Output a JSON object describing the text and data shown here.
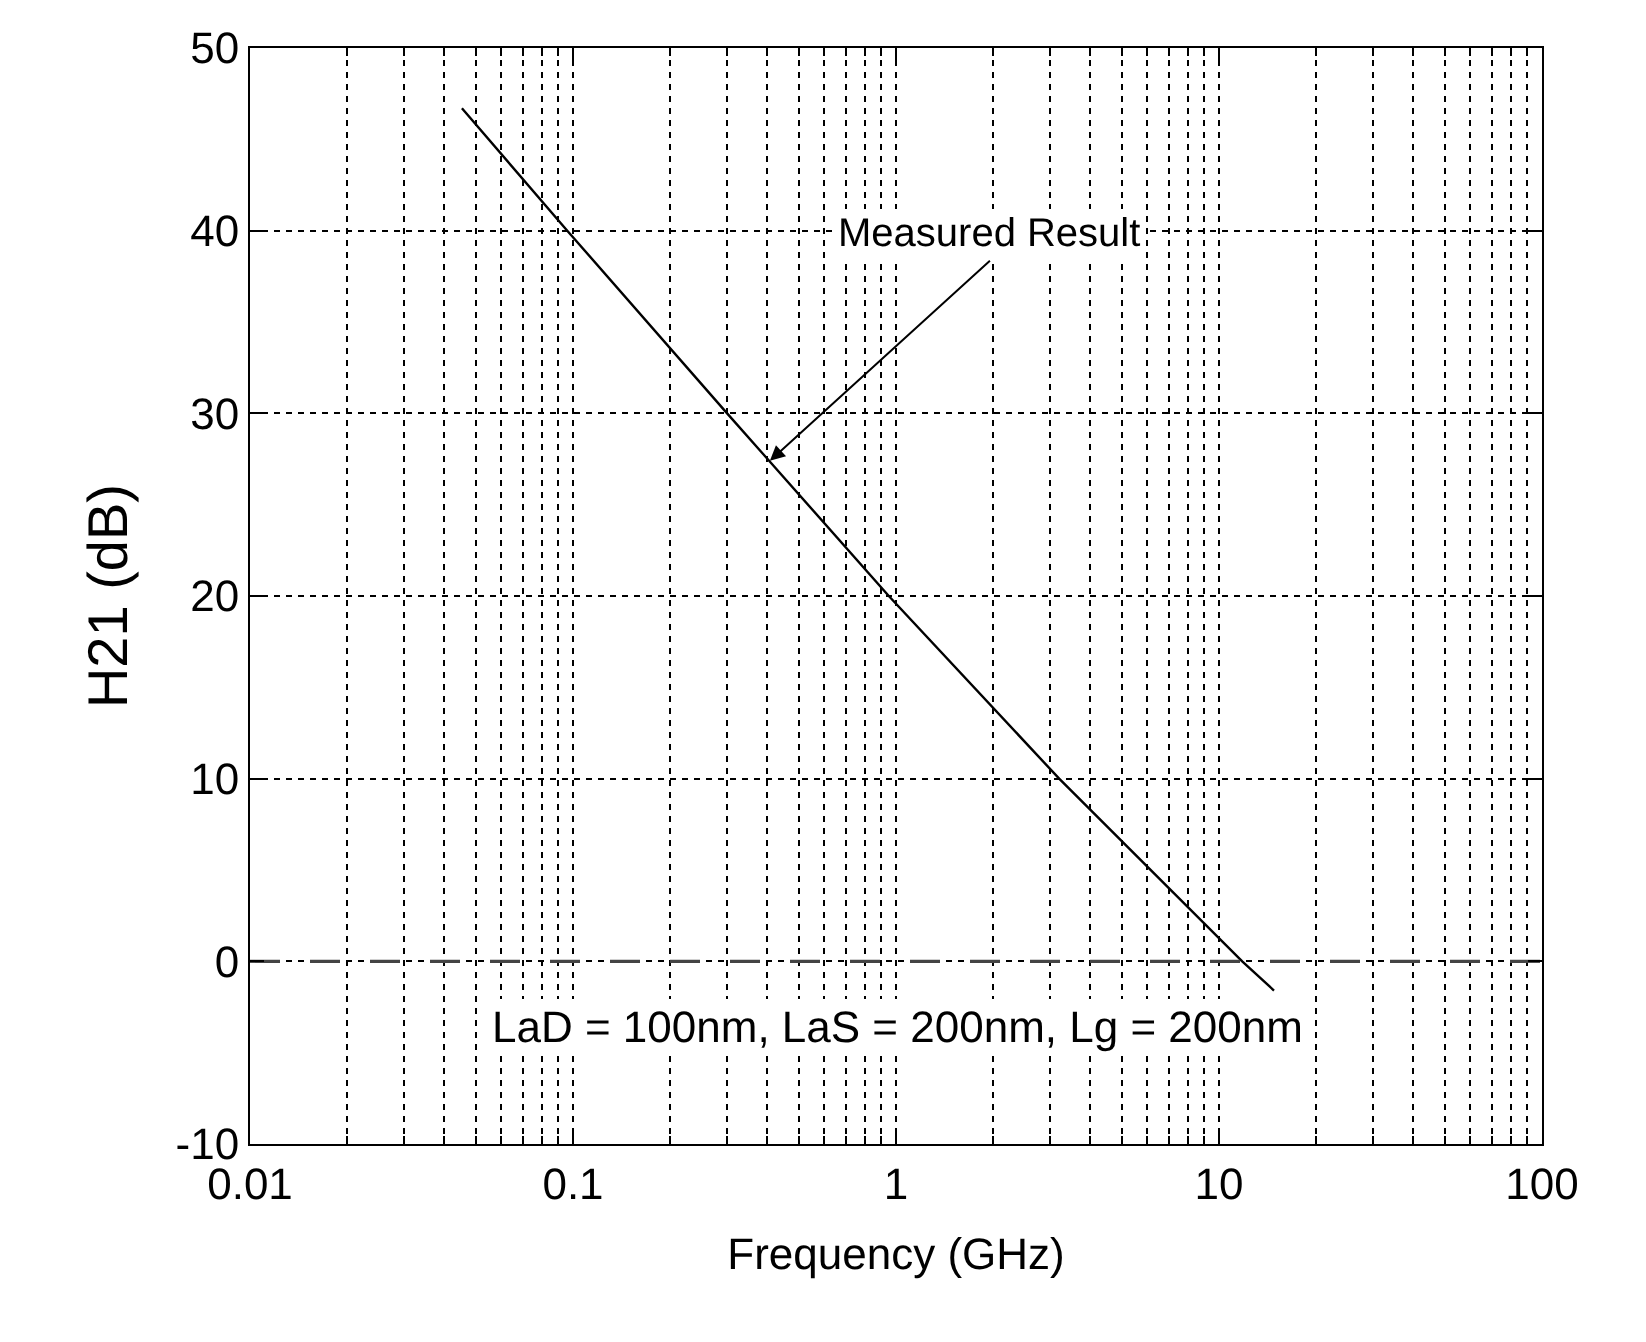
{
  "chart_data": {
    "type": "line",
    "xlabel": "Frequency (GHz)",
    "ylabel": "H21 (dB)",
    "x": [
      0.0453,
      0.096,
      0.3,
      0.95,
      3.2,
      11.8,
      14.8
    ],
    "series": [
      {
        "color": "#000000",
        "values": [
          46.7,
          40,
          30,
          20,
          10,
          0,
          -1.6
        ]
      }
    ],
    "log": "x",
    "xlim": [
      0.01,
      100
    ],
    "ylim": [
      -10,
      50
    ],
    "xticks": [
      0.01,
      0.1,
      1,
      10,
      100
    ],
    "yticks": [
      -10,
      0,
      10,
      20,
      30,
      40,
      50
    ],
    "grid": true,
    "marker": "none",
    "line_style": "solid",
    "ref_lines": [
      {
        "axis": "y",
        "value": 0,
        "label": null,
        "color": "#444444",
        "line_style": "dashed"
      }
    ],
    "annotations": [
      {
        "text": "Measured Result",
        "x": 0.407,
        "y": 27.4
      },
      "LaD = 100nm, LaS = 200nm, Lg = 200nm"
    ]
  }
}
